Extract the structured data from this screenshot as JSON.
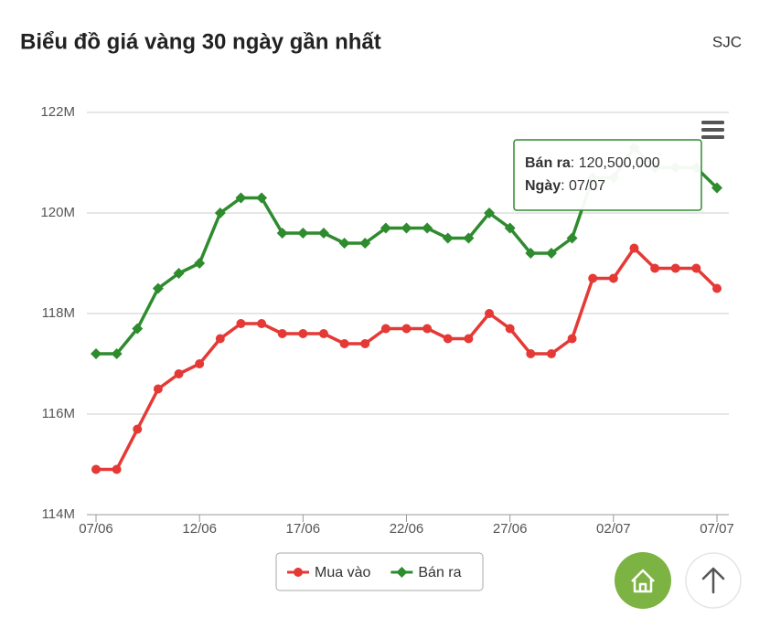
{
  "header": {
    "title": "Biểu đồ giá vàng 30 ngày gần nhất",
    "source": "SJC"
  },
  "chart_data": {
    "type": "line",
    "categories": [
      "07/06",
      null,
      null,
      null,
      null,
      "12/06",
      null,
      null,
      null,
      null,
      "17/06",
      null,
      null,
      null,
      null,
      "22/06",
      null,
      null,
      null,
      null,
      "27/06",
      null,
      null,
      null,
      null,
      "02/07",
      null,
      null,
      null,
      null,
      "07/07"
    ],
    "series": [
      {
        "name": "Mua vào",
        "color": "#e53935",
        "marker": "circle",
        "values": [
          114900000,
          114900000,
          115700000,
          116500000,
          116800000,
          117000000,
          117500000,
          117800000,
          117800000,
          117600000,
          117600000,
          117600000,
          117400000,
          117400000,
          117700000,
          117700000,
          117700000,
          117500000,
          117500000,
          118000000,
          117700000,
          117200000,
          117200000,
          117500000,
          118700000,
          118700000,
          119300000,
          118900000,
          118900000,
          118900000,
          118500000
        ]
      },
      {
        "name": "Bán ra",
        "color": "#2e8b2e",
        "marker": "diamond",
        "values": [
          117200000,
          117200000,
          117700000,
          118500000,
          118800000,
          119000000,
          120000000,
          120300000,
          120300000,
          119600000,
          119600000,
          119600000,
          119400000,
          119400000,
          119700000,
          119700000,
          119700000,
          119500000,
          119500000,
          120000000,
          119700000,
          119200000,
          119200000,
          119500000,
          120700000,
          120700000,
          121300000,
          120900000,
          120900000,
          120900000,
          120500000
        ]
      }
    ],
    "ylim": [
      114000000,
      122000000
    ],
    "yticks": [
      {
        "value": 114000000,
        "label": "114M"
      },
      {
        "value": 116000000,
        "label": "116M"
      },
      {
        "value": 118000000,
        "label": "118M"
      },
      {
        "value": 120000000,
        "label": "120M"
      },
      {
        "value": 122000000,
        "label": "122M"
      }
    ],
    "grid": true,
    "legend": "bottom",
    "tooltip": {
      "series": "Bán ra",
      "value": "120,500,000",
      "date_label": "Ngày",
      "date": "07/07"
    }
  }
}
